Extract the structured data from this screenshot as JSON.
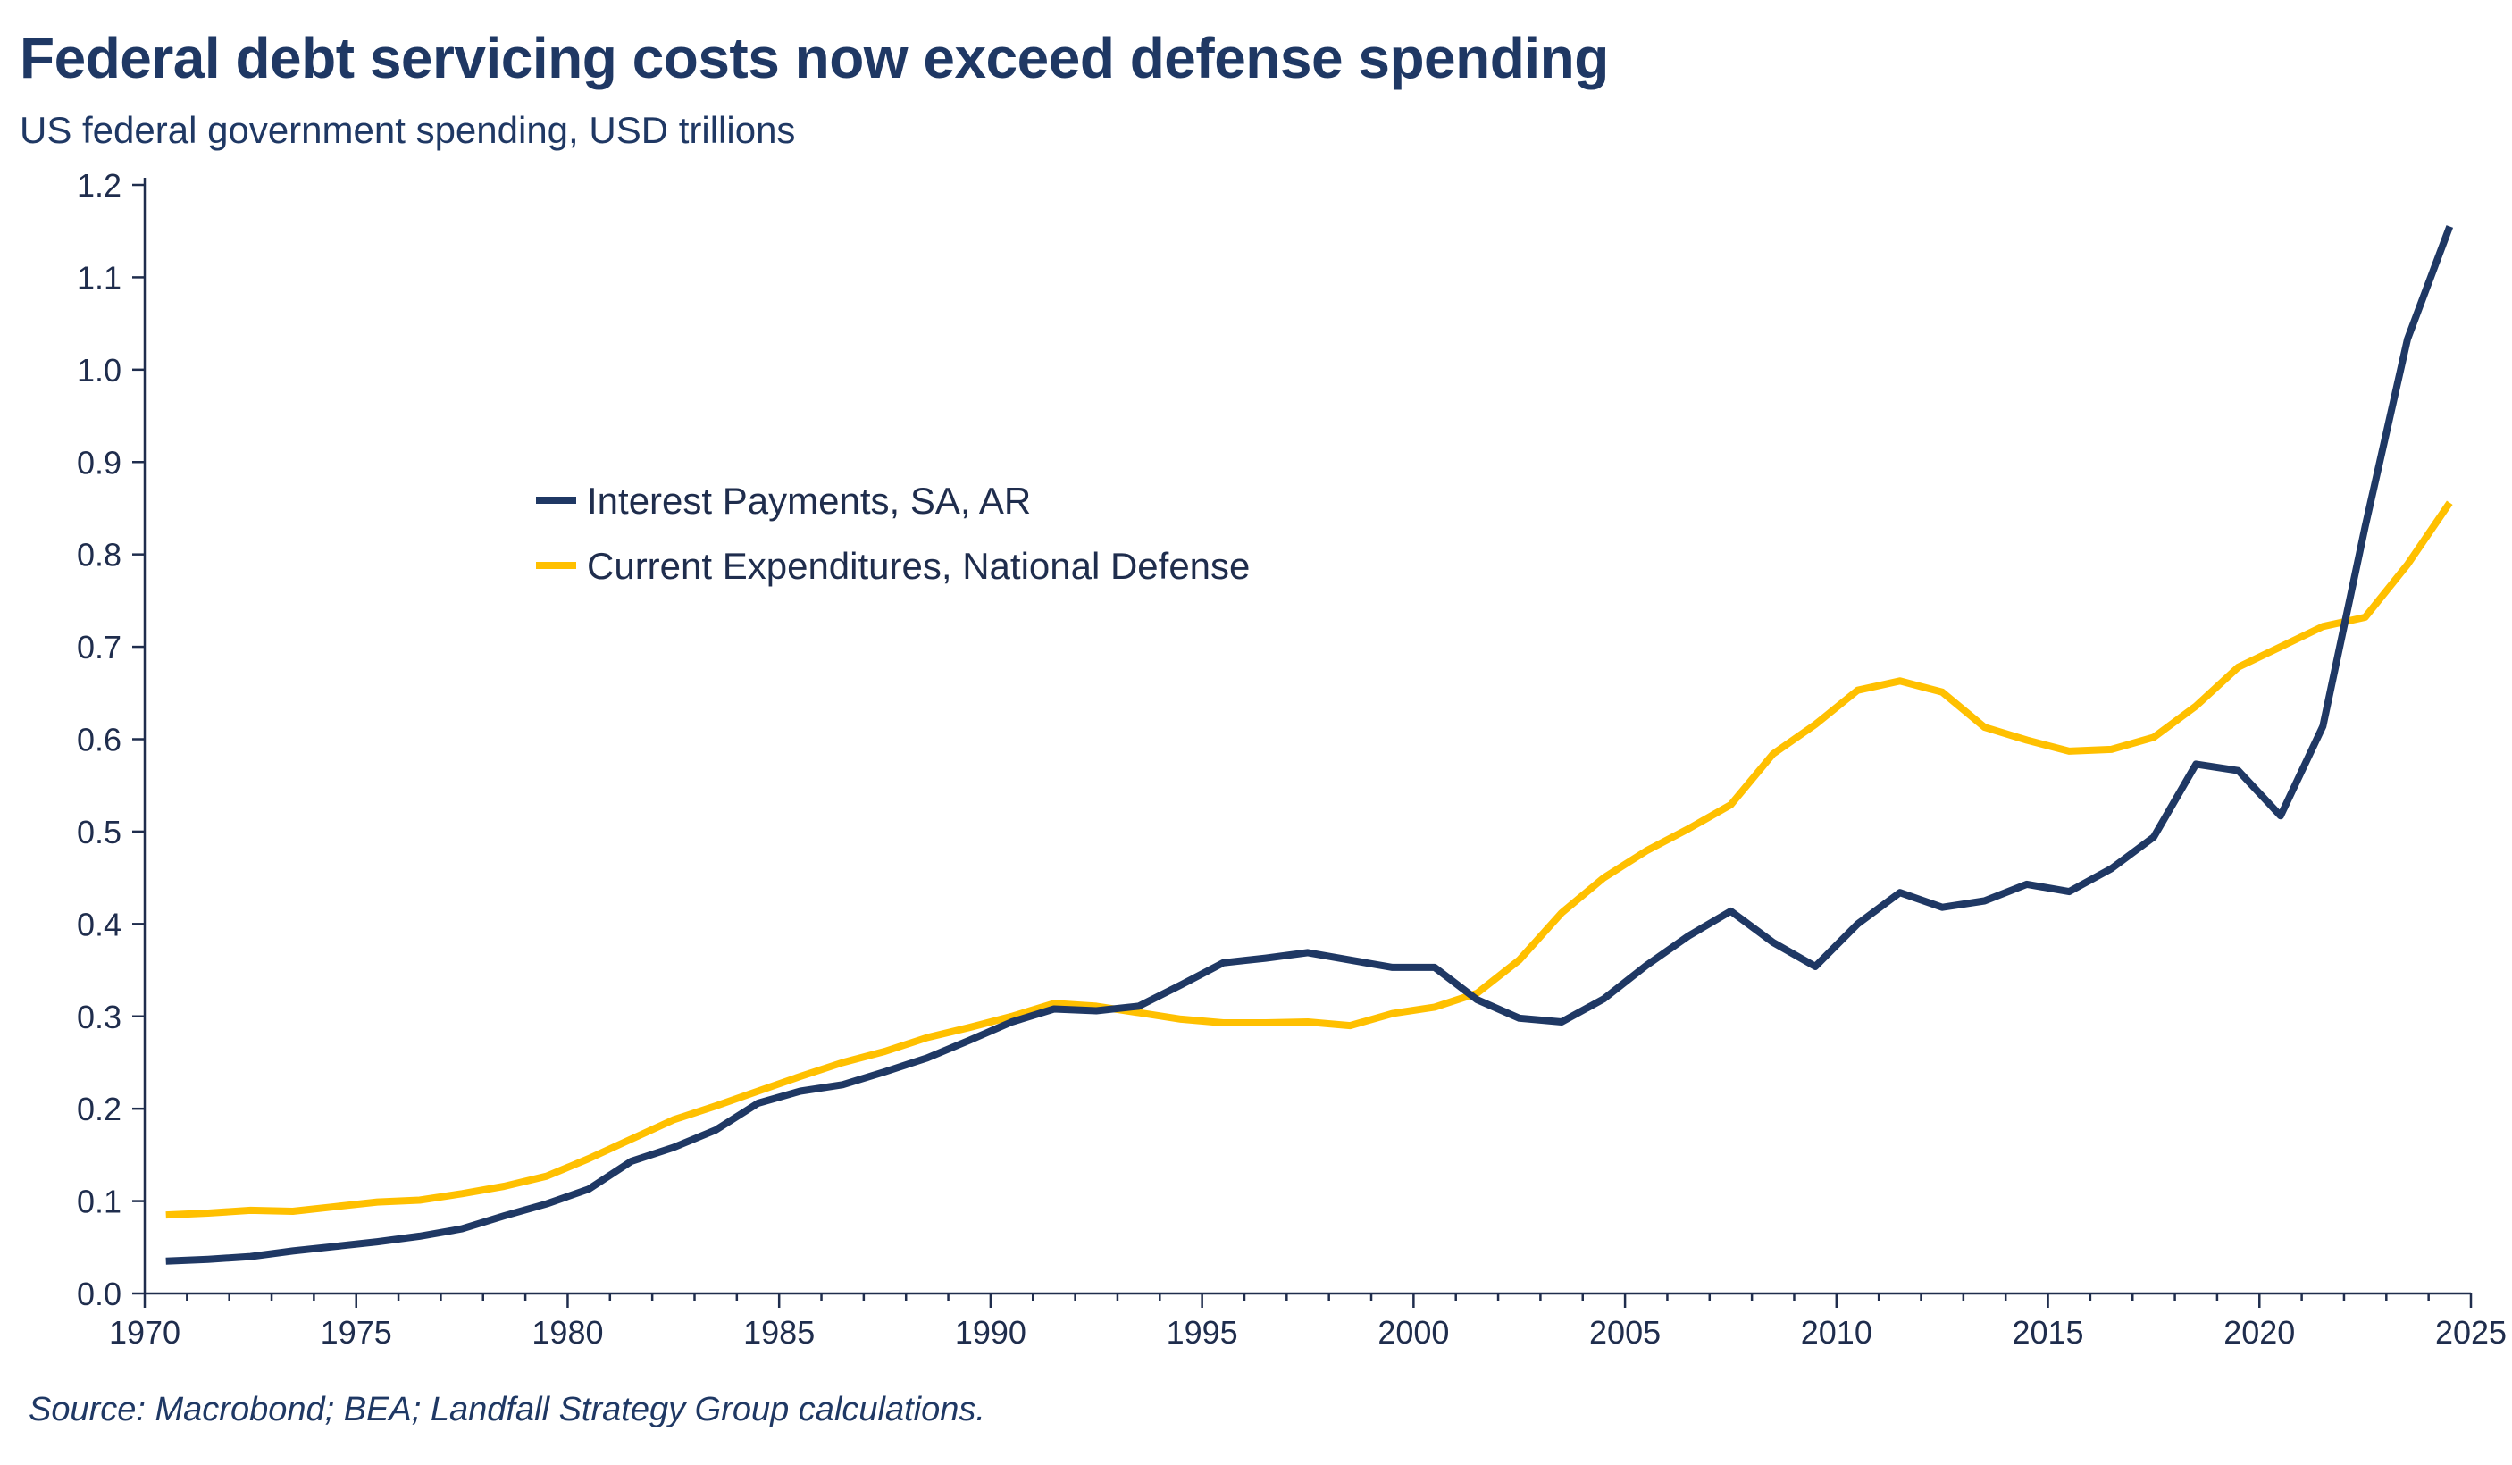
{
  "header": {
    "title": "Federal debt servicing costs now exceed defense spending",
    "subtitle": "US federal government spending, USD trillions"
  },
  "footer": {
    "source": "Source: Macrobond; BEA; Landfall Strategy Group calculations."
  },
  "colors": {
    "interest": "#1f3864",
    "defense": "#ffc000",
    "axis": "#1f2d4d"
  },
  "chart_data": {
    "type": "line",
    "title": "Federal debt servicing costs now exceed defense spending",
    "subtitle": "US federal government spending, USD trillions",
    "xlim": [
      1970,
      2025
    ],
    "ylim": [
      0.0,
      1.2
    ],
    "x_ticks": [
      1970,
      1975,
      1980,
      1985,
      1990,
      1995,
      2000,
      2005,
      2010,
      2015,
      2020,
      2025
    ],
    "x_tick_labels": [
      "1970",
      "1975",
      "1980",
      "1985",
      "1990",
      "1995",
      "2000",
      "2005",
      "2010",
      "2015",
      "2020",
      "2025"
    ],
    "y_ticks": [
      0.0,
      0.1,
      0.2,
      0.3,
      0.4,
      0.5,
      0.6,
      0.7,
      0.8,
      0.9,
      1.0,
      1.1,
      1.2
    ],
    "y_tick_labels": [
      "0.0",
      "0.1",
      "0.2",
      "0.3",
      "0.4",
      "0.5",
      "0.6",
      "0.7",
      "0.8",
      "0.9",
      "1.0",
      "1.1",
      "1.2"
    ],
    "grid": false,
    "legend_position": "center-left",
    "x": [
      1970.5,
      1971.5,
      1972.5,
      1973.5,
      1974.5,
      1975.5,
      1976.5,
      1977.5,
      1978.5,
      1979.5,
      1980.5,
      1981.5,
      1982.5,
      1983.5,
      1984.5,
      1985.5,
      1986.5,
      1987.5,
      1988.5,
      1989.5,
      1990.5,
      1991.5,
      1992.5,
      1993.5,
      1994.5,
      1995.5,
      1996.5,
      1997.5,
      1998.5,
      1999.5,
      2000.5,
      2001.5,
      2002.5,
      2003.5,
      2004.5,
      2005.5,
      2006.5,
      2007.5,
      2008.5,
      2009.5,
      2010.5,
      2011.5,
      2012.5,
      2013.5,
      2014.5,
      2015.5,
      2016.5,
      2017.5,
      2018.5,
      2019.5,
      2020.5,
      2021.5,
      2022.5,
      2023.5,
      2024.5
    ],
    "series": [
      {
        "name": "Interest Payments, SA, AR",
        "values": [
          0.035,
          0.037,
          0.04,
          0.046,
          0.051,
          0.056,
          0.062,
          0.07,
          0.084,
          0.097,
          0.113,
          0.143,
          0.158,
          0.177,
          0.206,
          0.219,
          0.226,
          0.24,
          0.255,
          0.274,
          0.294,
          0.308,
          0.306,
          0.311,
          0.334,
          0.358,
          0.363,
          0.369,
          0.361,
          0.353,
          0.353,
          0.318,
          0.298,
          0.294,
          0.319,
          0.355,
          0.387,
          0.414,
          0.38,
          0.354,
          0.4,
          0.434,
          0.418,
          0.425,
          0.443,
          0.435,
          0.46,
          0.494,
          0.573,
          0.566,
          0.517,
          0.614,
          0.83,
          1.033,
          1.155
        ]
      },
      {
        "name": "Current Expenditures, National Defense",
        "values": [
          0.085,
          0.087,
          0.09,
          0.089,
          0.094,
          0.099,
          0.101,
          0.108,
          0.116,
          0.127,
          0.146,
          0.167,
          0.188,
          0.203,
          0.219,
          0.235,
          0.25,
          0.262,
          0.277,
          0.288,
          0.3,
          0.314,
          0.311,
          0.304,
          0.297,
          0.293,
          0.293,
          0.294,
          0.29,
          0.303,
          0.31,
          0.325,
          0.361,
          0.412,
          0.45,
          0.479,
          0.503,
          0.529,
          0.584,
          0.616,
          0.653,
          0.663,
          0.651,
          0.613,
          0.599,
          0.587,
          0.589,
          0.602,
          0.636,
          0.678,
          0.7,
          0.722,
          0.732,
          0.789,
          0.856
        ]
      }
    ]
  }
}
